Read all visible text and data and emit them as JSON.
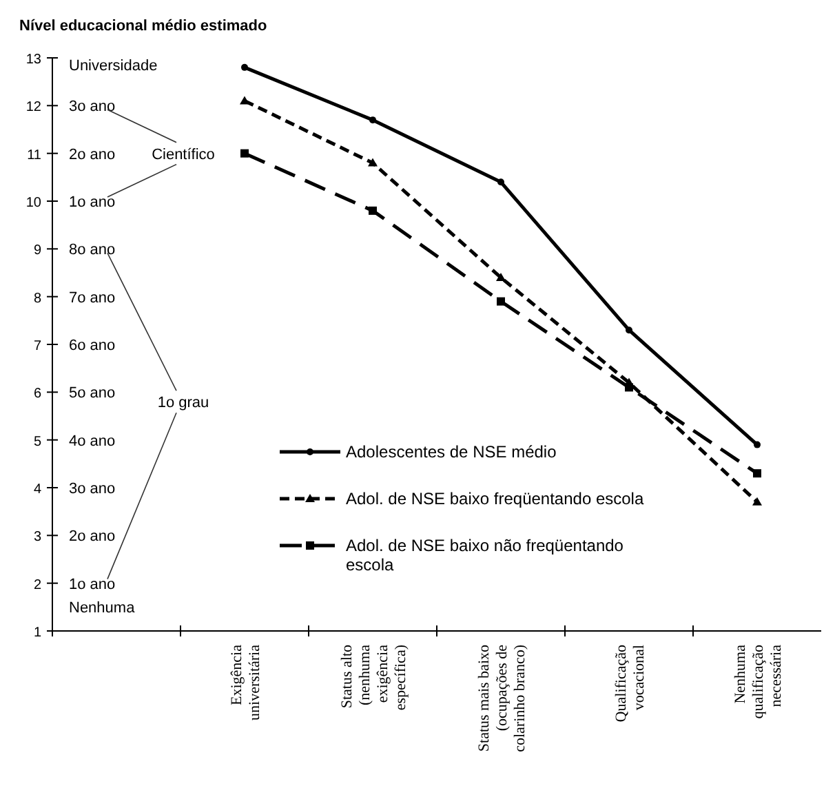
{
  "chart_data": {
    "type": "line",
    "title": "Nível educacional médio estimado",
    "categories": [
      null,
      "Exigência universitária",
      "Status alto (nenhuma exigência específica)",
      "Status mais baixo (ocupações de colarinho branco)",
      "Qualificação vocacional",
      "Nenhuma qualificação necessária"
    ],
    "series": [
      {
        "name": "Adolescentes de NSE médio",
        "color": "#000000",
        "values": [
          null,
          12.8,
          11.7,
          10.4,
          7.3,
          4.9
        ],
        "marker": "circle",
        "line_style": "solid"
      },
      {
        "name": "Adol. de NSE baixo freqüentando escola",
        "color": "#000000",
        "values": [
          null,
          12.1,
          10.8,
          8.4,
          6.2,
          3.7
        ],
        "marker": "triangle",
        "line_style": "dashed"
      },
      {
        "name": "Adol. de NSE baixo não freqüentando escola",
        "color": "#000000",
        "values": [
          null,
          11.0,
          9.8,
          7.9,
          6.1,
          4.3
        ],
        "marker": "square",
        "line_style": "dashed"
      }
    ],
    "ylim": [
      1,
      13
    ],
    "yticks": [
      1,
      2,
      3,
      4,
      5,
      6,
      7,
      8,
      9,
      10,
      11,
      12,
      13
    ],
    "annotations": [
      "3o ano",
      "2o ano",
      "1o ano",
      "Científico",
      "8o ano",
      "7o ano",
      "6o ano",
      "5o ano",
      "4o ano",
      "3o ano",
      "2o ano",
      "1o ano",
      "1o grau",
      "Universidade",
      "Nenhuma"
    ],
    "legend": "bottom",
    "grid": false
  }
}
